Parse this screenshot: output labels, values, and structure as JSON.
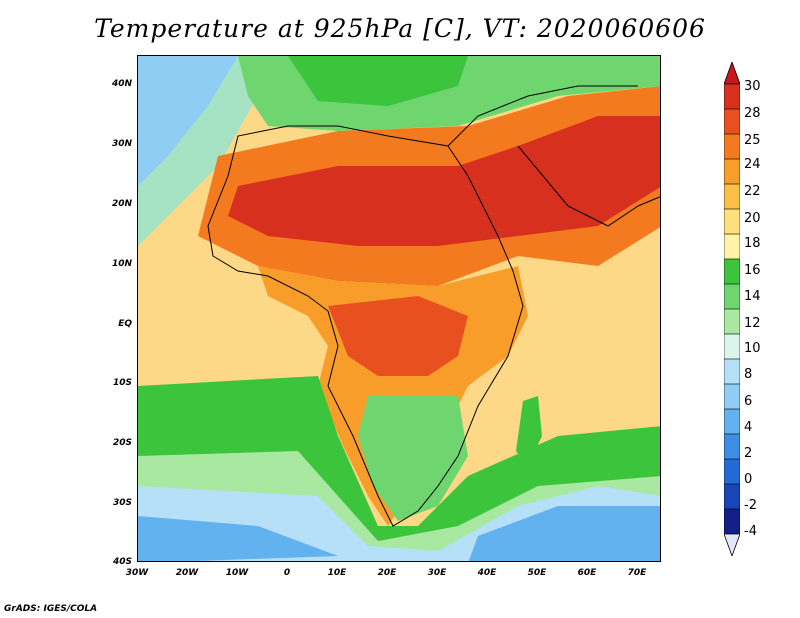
{
  "title": "Temperature at 925hPa [C], VT: 2020060606",
  "credit": "GrADS: IGES/COLA",
  "map": {
    "lon_range": [
      -30,
      75
    ],
    "lat_range": [
      -40,
      45
    ],
    "lat_ticks": [
      "40N",
      "30N",
      "20N",
      "10N",
      "EQ",
      "10S",
      "20S",
      "30S",
      "40S"
    ],
    "lon_ticks": [
      "30W",
      "20W",
      "10W",
      "0",
      "10E",
      "20E",
      "30E",
      "40E",
      "50E",
      "60E",
      "70E"
    ]
  },
  "colorbar": {
    "labels": [
      "30",
      "28",
      "25",
      "24",
      "22",
      "20",
      "18",
      "16",
      "14",
      "12",
      "10",
      "8",
      "6",
      "4",
      "2",
      "0",
      "-2",
      "-4"
    ],
    "colors": [
      "#d7301f",
      "#e8501f",
      "#f47a1f",
      "#f99d2a",
      "#fbbf47",
      "#fde07a",
      "#fdf3a8",
      "#3cc43c",
      "#6fd66f",
      "#a8e8a0",
      "#dcf5ec",
      "#b6e0f8",
      "#8fcdf5",
      "#62b2ef",
      "#3d8ee6",
      "#226ad6",
      "#1a45b8",
      "#14208a",
      "#e6e6fa"
    ],
    "arrow_top_color": "#c8171d",
    "arrow_bottom_color": "#e6e6fa"
  },
  "colors": {
    "very_hot": "#d7301f",
    "hot": "#f47a1f",
    "warm": "#fbbf47",
    "mild": "#fde07a",
    "green": "#3cc43c",
    "light_green": "#8fdc8f",
    "cool": "#b6e0f8",
    "cold": "#62b2ef",
    "ocean": "#fbd471"
  }
}
